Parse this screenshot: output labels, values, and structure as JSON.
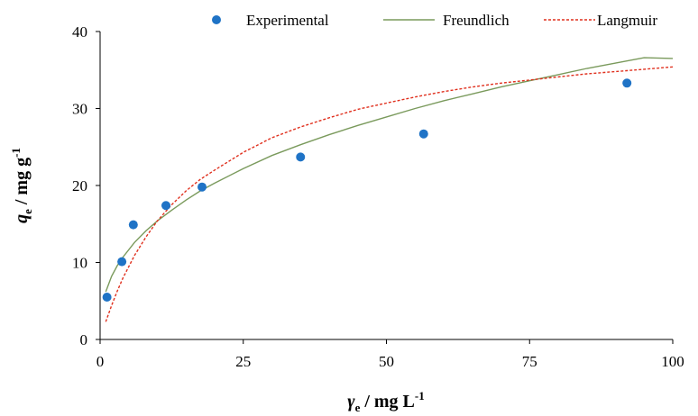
{
  "chart_data": {
    "type": "scatter",
    "xlim": [
      0,
      100
    ],
    "ylim": [
      0,
      40
    ],
    "x_ticks": [
      0,
      25,
      50,
      75,
      100
    ],
    "y_ticks": [
      0,
      10,
      20,
      30,
      40
    ],
    "grid": false,
    "legend_position": "top",
    "xlabel": {
      "symbol": "γ",
      "subscript": "e",
      "unit_text": " / mg L",
      "unit_exponent": "-1"
    },
    "ylabel": {
      "symbol": "q",
      "subscript": "e",
      "unit_text": " / mg g",
      "unit_exponent": "-1"
    },
    "series": [
      {
        "name": "Experimental",
        "kind": "points",
        "color": "#1f73c6",
        "x": [
          1.2,
          3.8,
          5.8,
          11.5,
          17.8,
          35.0,
          56.5,
          92.0
        ],
        "y": [
          5.5,
          10.1,
          14.9,
          17.4,
          19.8,
          23.7,
          26.7,
          33.3
        ]
      },
      {
        "name": "Freundlich",
        "kind": "line",
        "color": "#7a9a5c",
        "dash": "none",
        "x": [
          1,
          2,
          3,
          4,
          6,
          8,
          10,
          12.5,
          15,
          17.5,
          20,
          25,
          30,
          35,
          40,
          45,
          50,
          55,
          60,
          65,
          70,
          75,
          80,
          85,
          90,
          95,
          100
        ],
        "y": [
          6.2,
          8.2,
          9.6,
          10.7,
          12.6,
          14.1,
          15.4,
          16.8,
          18.1,
          19.3,
          20.3,
          22.2,
          23.9,
          25.3,
          26.6,
          27.8,
          28.9,
          30.0,
          31.0,
          31.9,
          32.8,
          33.6,
          34.4,
          35.2,
          35.9,
          36.6,
          36.5
        ]
      },
      {
        "name": "Langmuir",
        "kind": "line",
        "color": "#e0301e",
        "dash": "3,2",
        "x": [
          1,
          2,
          3,
          4,
          6,
          8,
          10,
          12.5,
          15,
          17.5,
          20,
          25,
          30,
          35,
          40,
          45,
          50,
          55,
          60,
          65,
          70,
          75,
          80,
          85,
          90,
          95,
          100
        ],
        "y": [
          2.3,
          4.4,
          6.3,
          8.0,
          10.9,
          13.3,
          15.4,
          17.5,
          19.3,
          20.8,
          22.0,
          24.3,
          26.2,
          27.6,
          28.8,
          29.9,
          30.7,
          31.5,
          32.2,
          32.8,
          33.3,
          33.7,
          34.1,
          34.5,
          34.8,
          35.1,
          35.4
        ]
      }
    ]
  }
}
